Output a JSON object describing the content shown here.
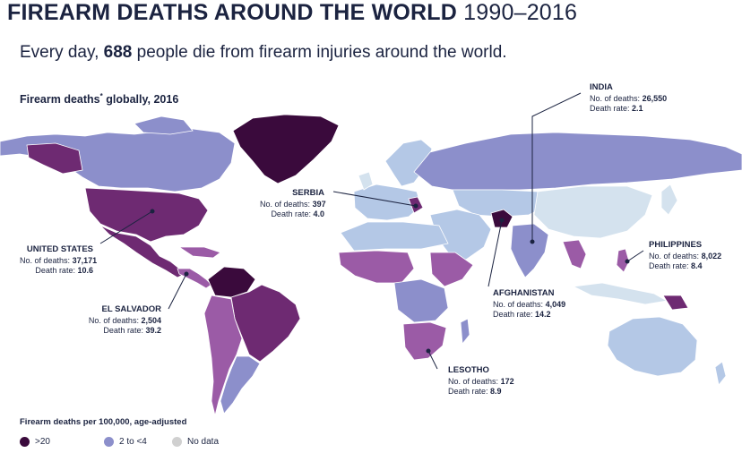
{
  "title": {
    "main": "FIREARM DEATHS AROUND THE WORLD",
    "years": "1990–2016"
  },
  "subtitle": {
    "prefix": "Every day, ",
    "count": "688",
    "suffix": " people die from firearm injuries around the world."
  },
  "map_heading": {
    "text": "Firearm deaths",
    "sup": "*",
    "rest": " globally, 2016"
  },
  "colors": {
    "very_high": "#3a0a3c",
    "high": "#6e2a72",
    "mid_high": "#9b5ba6",
    "mid": "#8c8fcb",
    "low": "#b4c8e6",
    "very_low": "#d4e2ee",
    "no_data": "#d0d0d0",
    "leader": "#1b2340"
  },
  "callouts": [
    {
      "id": "india",
      "name": "INDIA",
      "deaths_label": "No. of deaths:",
      "deaths": "26,550",
      "rate_label": "Death rate:",
      "rate": "2.1"
    },
    {
      "id": "serbia",
      "name": "SERBIA",
      "deaths_label": "No. of deaths:",
      "deaths": "397",
      "rate_label": "Death rate:",
      "rate": "4.0"
    },
    {
      "id": "united-states",
      "name": "UNITED STATES",
      "deaths_label": "No. of deaths:",
      "deaths": "37,171",
      "rate_label": "Death rate:",
      "rate": "10.6"
    },
    {
      "id": "philippines",
      "name": "PHILIPPINES",
      "deaths_label": "No. of deaths:",
      "deaths": "8,022",
      "rate_label": "Death rate:",
      "rate": "8.4"
    },
    {
      "id": "el-salvador",
      "name": "EL SALVADOR",
      "deaths_label": "No. of deaths:",
      "deaths": "2,504",
      "rate_label": "Death rate:",
      "rate": "39.2"
    },
    {
      "id": "afghanistan",
      "name": "AFGHANISTAN",
      "deaths_label": "No. of deaths:",
      "deaths": "4,049",
      "rate_label": "Death rate:",
      "rate": "14.2"
    },
    {
      "id": "lesotho",
      "name": "LESOTHO",
      "deaths_label": "No. of deaths:",
      "deaths": "172",
      "rate_label": "Death rate:",
      "rate": "8.9"
    }
  ],
  "legend": {
    "title": "Firearm deaths per 100,000, age-adjusted",
    "items": [
      {
        "label": ">20",
        "color": "#3a0a3c"
      },
      {
        "label": "2 to <4",
        "color": "#8c8fcb"
      },
      {
        "label": "No data",
        "color": "#d0d0d0"
      }
    ]
  }
}
